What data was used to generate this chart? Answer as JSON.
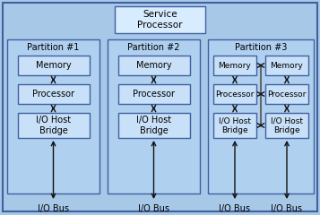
{
  "bg_color": "#a8c8e8",
  "outer_bg": "#a8c8e8",
  "partition_fill": "#b0d0f0",
  "inner_fill": "#c8e0f8",
  "service_fill": "#d8ecff",
  "edge_color": "#4060a0",
  "arrow_color": "#111111",
  "gray_line_color": "#666666",
  "title": "Service\nProcessor",
  "partitions": [
    "Partition #1",
    "Partition #2",
    "Partition #3"
  ],
  "comp1": "Memory",
  "comp2": "Processor",
  "comp3": "I/O Host\nBridge",
  "bus_label": "I/O Bus",
  "font_size": 7.0,
  "label_font_size": 7.5
}
